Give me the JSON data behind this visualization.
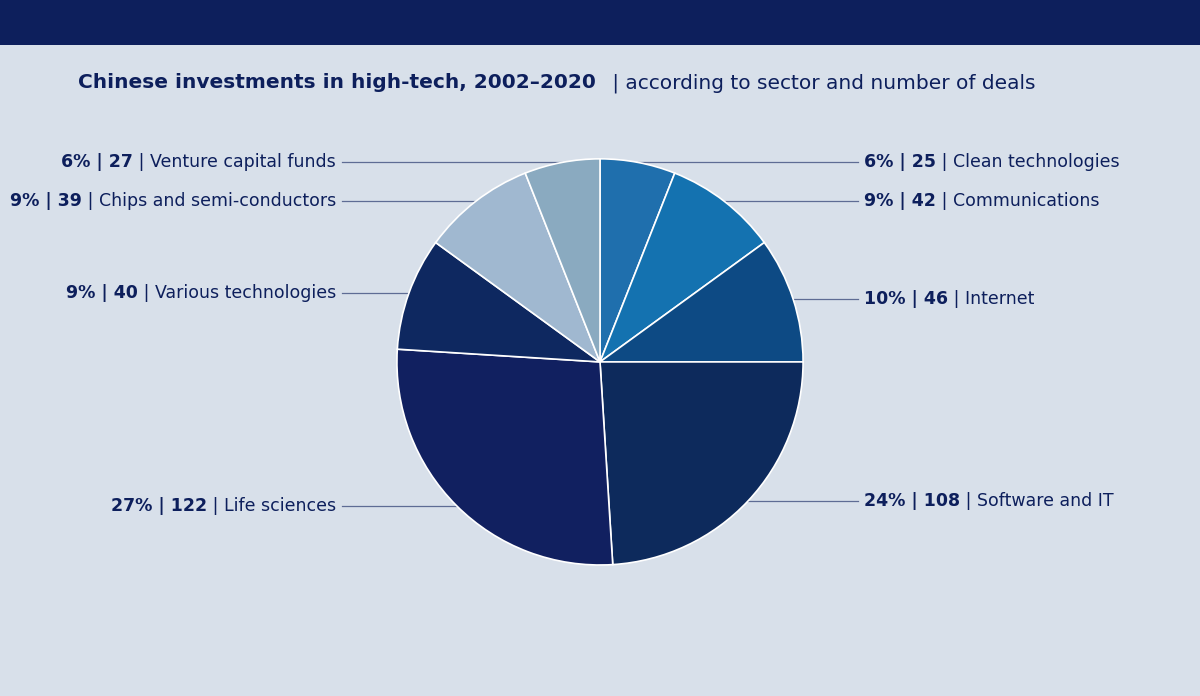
{
  "title_bold": "Chinese investments in high-tech, 2002–2020",
  "title_normal": " | according to sector and number of deals",
  "background_color": "#d8e0ea",
  "header_color": "#0d1f5c",
  "slices": [
    {
      "label": "Clean technologies",
      "pct": 6,
      "deals": 25,
      "color": "#1f6fad",
      "label_side": "right"
    },
    {
      "label": "Communications",
      "pct": 9,
      "deals": 42,
      "color": "#1472b0",
      "label_side": "right"
    },
    {
      "label": "Internet",
      "pct": 10,
      "deals": 46,
      "color": "#0d4a84",
      "label_side": "right"
    },
    {
      "label": "Software and IT",
      "pct": 24,
      "deals": 108,
      "color": "#0d2a5c",
      "label_side": "right"
    },
    {
      "label": "Life sciences",
      "pct": 27,
      "deals": 122,
      "color": "#112060",
      "label_side": "left"
    },
    {
      "label": "Various technologies",
      "pct": 9,
      "deals": 40,
      "color": "#0e2860",
      "label_side": "left"
    },
    {
      "label": "Chips and semi-conductors",
      "pct": 9,
      "deals": 39,
      "color": "#a0b8d0",
      "label_side": "left"
    },
    {
      "label": "Venture capital funds",
      "pct": 6,
      "deals": 27,
      "color": "#8aaac0",
      "label_side": "left"
    }
  ],
  "text_color": "#0d1f5c",
  "figsize": [
    12,
    6.96
  ],
  "dpi": 100
}
